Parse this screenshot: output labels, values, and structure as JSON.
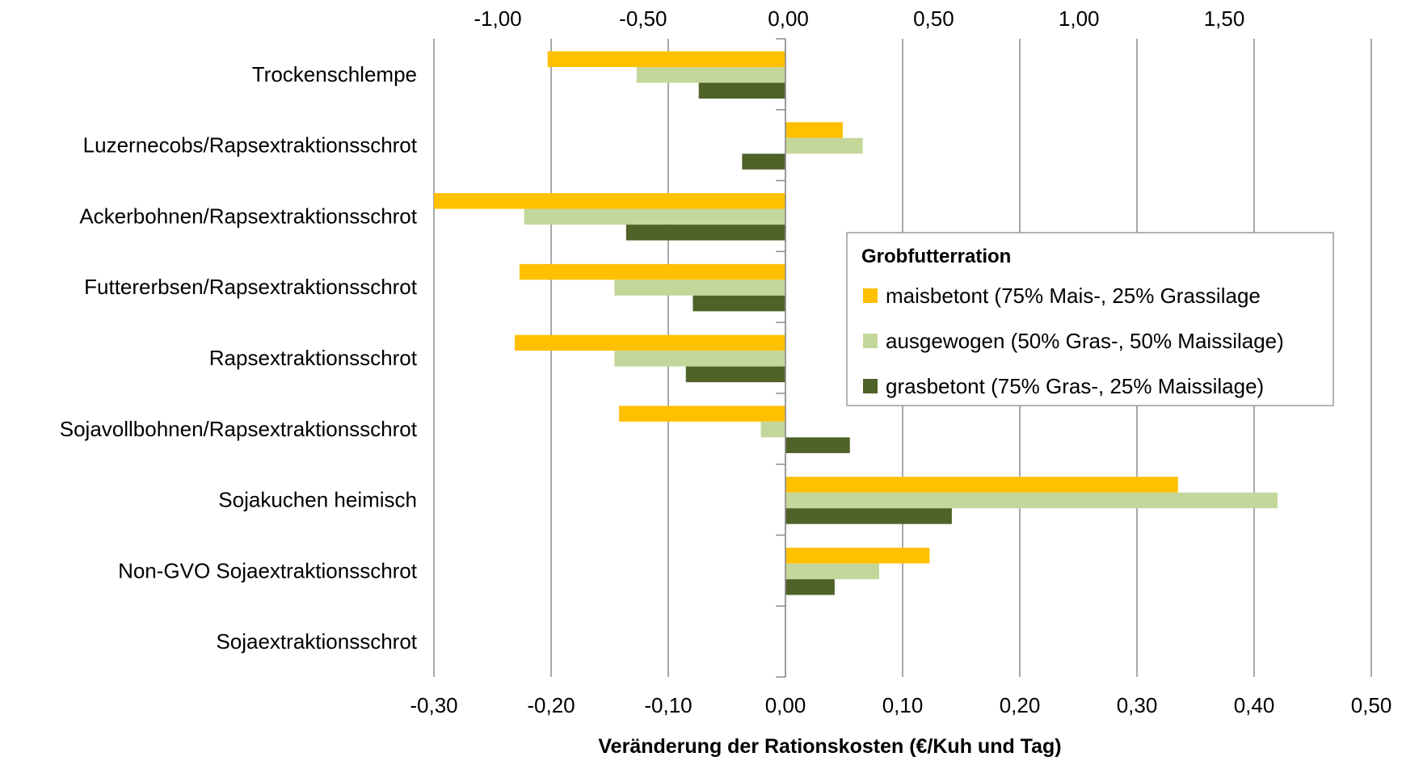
{
  "chart_data": {
    "type": "bar",
    "orientation": "horizontal",
    "categories": [
      "Trockenschlempe",
      "Luzernecobs/Rapsextraktionsschrot",
      "Ackerbohnen/Rapsextraktionsschrot",
      "Futtererbsen/Rapsextraktionsschrot",
      "Rapsextraktionsschrot",
      "Sojavollbohnen/Rapsextraktionsschrot",
      "Sojakuchen heimisch",
      "Non-GVO Sojaextraktionsschrot",
      "Sojaextraktionsschrot"
    ],
    "series": [
      {
        "name": "maisbetont (75% Mais-, 25% Grassilage",
        "color": "#FFC000",
        "values": [
          -0.203,
          0.049,
          -0.3,
          -0.227,
          -0.231,
          -0.142,
          0.335,
          0.123,
          0
        ]
      },
      {
        "name": "ausgewogen (50% Gras-, 50% Maissilage)",
        "color": "#C4D79B",
        "values": [
          -0.127,
          0.066,
          -0.223,
          -0.146,
          -0.146,
          -0.021,
          0.42,
          0.08,
          0
        ]
      },
      {
        "name": "grasbetont (75% Gras-, 25% Maissilage)",
        "color": "#4F6228",
        "values": [
          -0.074,
          -0.037,
          -0.136,
          -0.079,
          -0.085,
          0.055,
          0.142,
          0.042,
          0
        ]
      }
    ],
    "xlabel": "Veränderung der Rationskosten (€/Kuh und Tag)",
    "xlim": [
      -0.3,
      0.5
    ],
    "xticks": [
      "-0,30",
      "-0,20",
      "-0,10",
      "0,00",
      "0,10",
      "0,20",
      "0,30",
      "0,40",
      "0,50"
    ],
    "secondary_xticks": [
      "-1,00",
      "-0,50",
      "0,00",
      "0,50",
      "1,00",
      "1,50"
    ],
    "grid": true,
    "legend": {
      "title": "Grobfutterration",
      "placement": "center-right"
    }
  }
}
